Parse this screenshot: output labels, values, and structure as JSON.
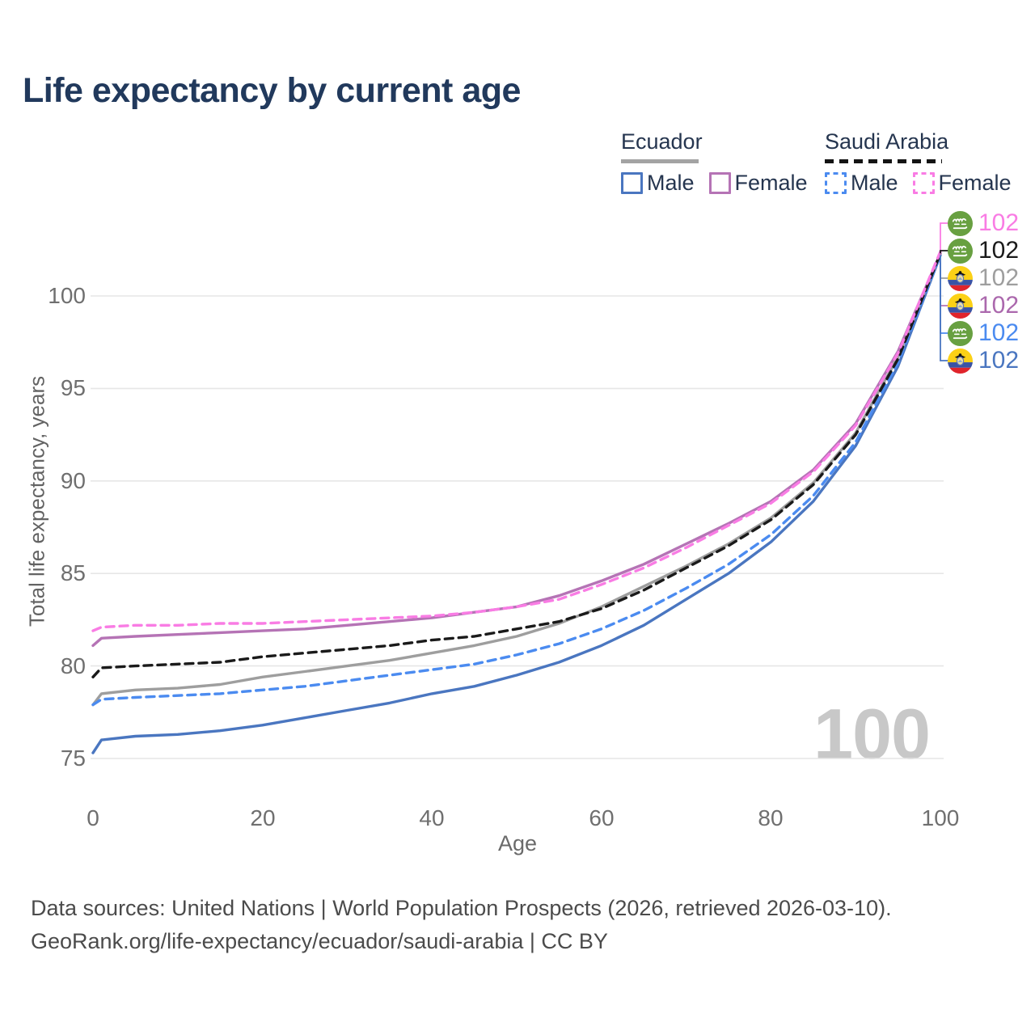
{
  "title": "Life expectancy by current age",
  "legend": {
    "groups": [
      {
        "label": "Ecuador",
        "style": "solid",
        "items": [
          {
            "label": "Male"
          },
          {
            "label": "Female"
          }
        ]
      },
      {
        "label": "Saudi Arabia",
        "style": "dashed",
        "items": [
          {
            "label": "Male"
          },
          {
            "label": "Female"
          }
        ]
      }
    ]
  },
  "chart_data": {
    "type": "line",
    "title": "Life expectancy by current age",
    "xlabel": "Age",
    "ylabel": "Total life expectancy, years",
    "xlim": [
      0,
      100
    ],
    "ylim": [
      74,
      103
    ],
    "xticks": [
      0,
      20,
      40,
      60,
      80,
      100
    ],
    "yticks": [
      75,
      80,
      85,
      90,
      95,
      100
    ],
    "grid": "horizontal",
    "legend_position": "top-right",
    "x": [
      0,
      1,
      5,
      10,
      15,
      20,
      25,
      30,
      35,
      40,
      45,
      50,
      55,
      60,
      65,
      70,
      75,
      80,
      85,
      90,
      95,
      100
    ],
    "series": [
      {
        "key": "ecuador_male",
        "name": "Ecuador Male",
        "country": "Ecuador",
        "sex": "Male",
        "color": "#4a76c0",
        "dashed": false,
        "values": [
          75.3,
          76.0,
          76.2,
          76.3,
          76.5,
          76.8,
          77.2,
          77.6,
          78.0,
          78.5,
          78.9,
          79.5,
          80.2,
          81.1,
          82.2,
          83.6,
          85.0,
          86.7,
          88.9,
          91.9,
          96.2,
          102.2
        ]
      },
      {
        "key": "ecuador_total",
        "name": "Ecuador Both sexes",
        "country": "Ecuador",
        "sex": "Both",
        "color": "#9e9e9e",
        "dashed": false,
        "values": [
          77.9,
          78.5,
          78.7,
          78.8,
          79.0,
          79.4,
          79.7,
          80.0,
          80.3,
          80.7,
          81.1,
          81.6,
          82.3,
          83.2,
          84.3,
          85.4,
          86.6,
          88.0,
          89.9,
          92.6,
          96.7,
          102.3
        ]
      },
      {
        "key": "ecuador_female",
        "name": "Ecuador Female",
        "country": "Ecuador",
        "sex": "Female",
        "color": "#b573b5",
        "dashed": false,
        "values": [
          81.1,
          81.5,
          81.6,
          81.7,
          81.8,
          81.9,
          82.0,
          82.2,
          82.4,
          82.6,
          82.9,
          83.2,
          83.8,
          84.6,
          85.5,
          86.6,
          87.7,
          88.9,
          90.6,
          93.1,
          97.0,
          102.3
        ]
      },
      {
        "key": "saudi_male",
        "name": "Saudi Arabia Male",
        "country": "Saudi Arabia",
        "sex": "Male",
        "color": "#4b8bf0",
        "dashed": true,
        "values": [
          77.9,
          78.2,
          78.3,
          78.4,
          78.5,
          78.7,
          78.9,
          79.2,
          79.5,
          79.8,
          80.1,
          80.6,
          81.2,
          82.0,
          83.0,
          84.2,
          85.5,
          87.1,
          89.2,
          92.1,
          96.4,
          102.2
        ]
      },
      {
        "key": "saudi_total",
        "name": "Saudi Arabia Both sexes",
        "country": "Saudi Arabia",
        "sex": "Both",
        "color": "#1a1a1a",
        "dashed": true,
        "values": [
          79.4,
          79.9,
          80.0,
          80.1,
          80.2,
          80.5,
          80.7,
          80.9,
          81.1,
          81.4,
          81.6,
          82.0,
          82.4,
          83.1,
          84.1,
          85.3,
          86.5,
          87.9,
          89.8,
          92.5,
          96.6,
          102.3
        ]
      },
      {
        "key": "saudi_female",
        "name": "Saudi Arabia Female",
        "country": "Saudi Arabia",
        "sex": "Female",
        "color": "#f97ce4",
        "dashed": true,
        "values": [
          81.9,
          82.1,
          82.2,
          82.2,
          82.3,
          82.3,
          82.4,
          82.5,
          82.6,
          82.7,
          82.9,
          83.2,
          83.6,
          84.4,
          85.3,
          86.4,
          87.6,
          88.8,
          90.5,
          93.0,
          96.9,
          102.4
        ]
      }
    ]
  },
  "end_labels": [
    {
      "series": "saudi_female",
      "flag": "saudi-arabia",
      "value": "102",
      "color": "#f97ce4"
    },
    {
      "series": "saudi_total",
      "flag": "saudi-arabia",
      "value": "102",
      "color": "#1a1a1a"
    },
    {
      "series": "ecuador_total",
      "flag": "ecuador",
      "value": "102",
      "color": "#9e9e9e"
    },
    {
      "series": "ecuador_female",
      "flag": "ecuador",
      "value": "102",
      "color": "#ab68ad"
    },
    {
      "series": "saudi_male",
      "flag": "saudi-arabia",
      "value": "102",
      "color": "#4b8bf0"
    },
    {
      "series": "ecuador_male",
      "flag": "ecuador",
      "value": "102",
      "color": "#4a76c0"
    }
  ],
  "watermark": "100",
  "footer": {
    "line1": "Data sources: United Nations | World Population Prospects (2026, retrieved 2026-03-10).",
    "line2": "GeoRank.org/life-expectancy/ecuador/saudi-arabia | CC BY"
  }
}
